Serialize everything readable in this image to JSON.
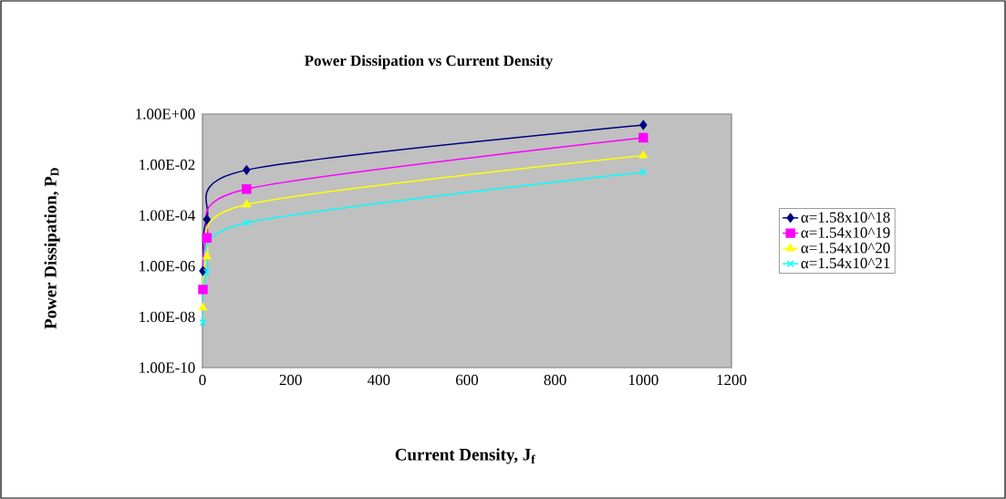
{
  "chart_data": {
    "type": "line",
    "title": "Power Dissipation vs Current Density",
    "xlabel": "Current Density, J$_{f}$",
    "ylabel": "Power Dissipation, P$_{D}$",
    "x": [
      1,
      10,
      100,
      1000
    ],
    "series": [
      {
        "name": "α=1.58x10^18",
        "color": "#000080",
        "marker": "diamond",
        "values": [
          6.5e-07,
          7e-05,
          0.0062,
          0.37
        ]
      },
      {
        "name": "α=1.54x10^19",
        "color": "#ff00ff",
        "marker": "square",
        "values": [
          1.2e-07,
          1.3e-05,
          0.0011,
          0.115
        ]
      },
      {
        "name": "α=1.54x10^20",
        "color": "#ffff00",
        "marker": "triangle",
        "values": [
          2.3e-08,
          2.4e-06,
          0.00027,
          0.023
        ]
      },
      {
        "name": "α=1.54x10^21",
        "color": "#00ffff",
        "marker": "cross",
        "values": [
          6e-09,
          5.8e-07,
          5.1e-05,
          0.0051
        ]
      }
    ],
    "log": "y",
    "xlim": [
      0,
      1200
    ],
    "ylim": [
      1e-10,
      1
    ],
    "xticks": [
      0,
      200,
      400,
      600,
      800,
      1000,
      1200
    ],
    "yticks": [
      {
        "value": 1e-10,
        "label": "1.00E-10"
      },
      {
        "value": 1e-08,
        "label": "1.00E-08"
      },
      {
        "value": 1e-06,
        "label": "1.00E-06"
      },
      {
        "value": 0.0001,
        "label": "1.00E-04"
      },
      {
        "value": 0.01,
        "label": "1.00E-02"
      },
      {
        "value": 1,
        "label": "1.00E+00"
      }
    ],
    "grid": false,
    "legend": "right",
    "line_style": "solid"
  }
}
